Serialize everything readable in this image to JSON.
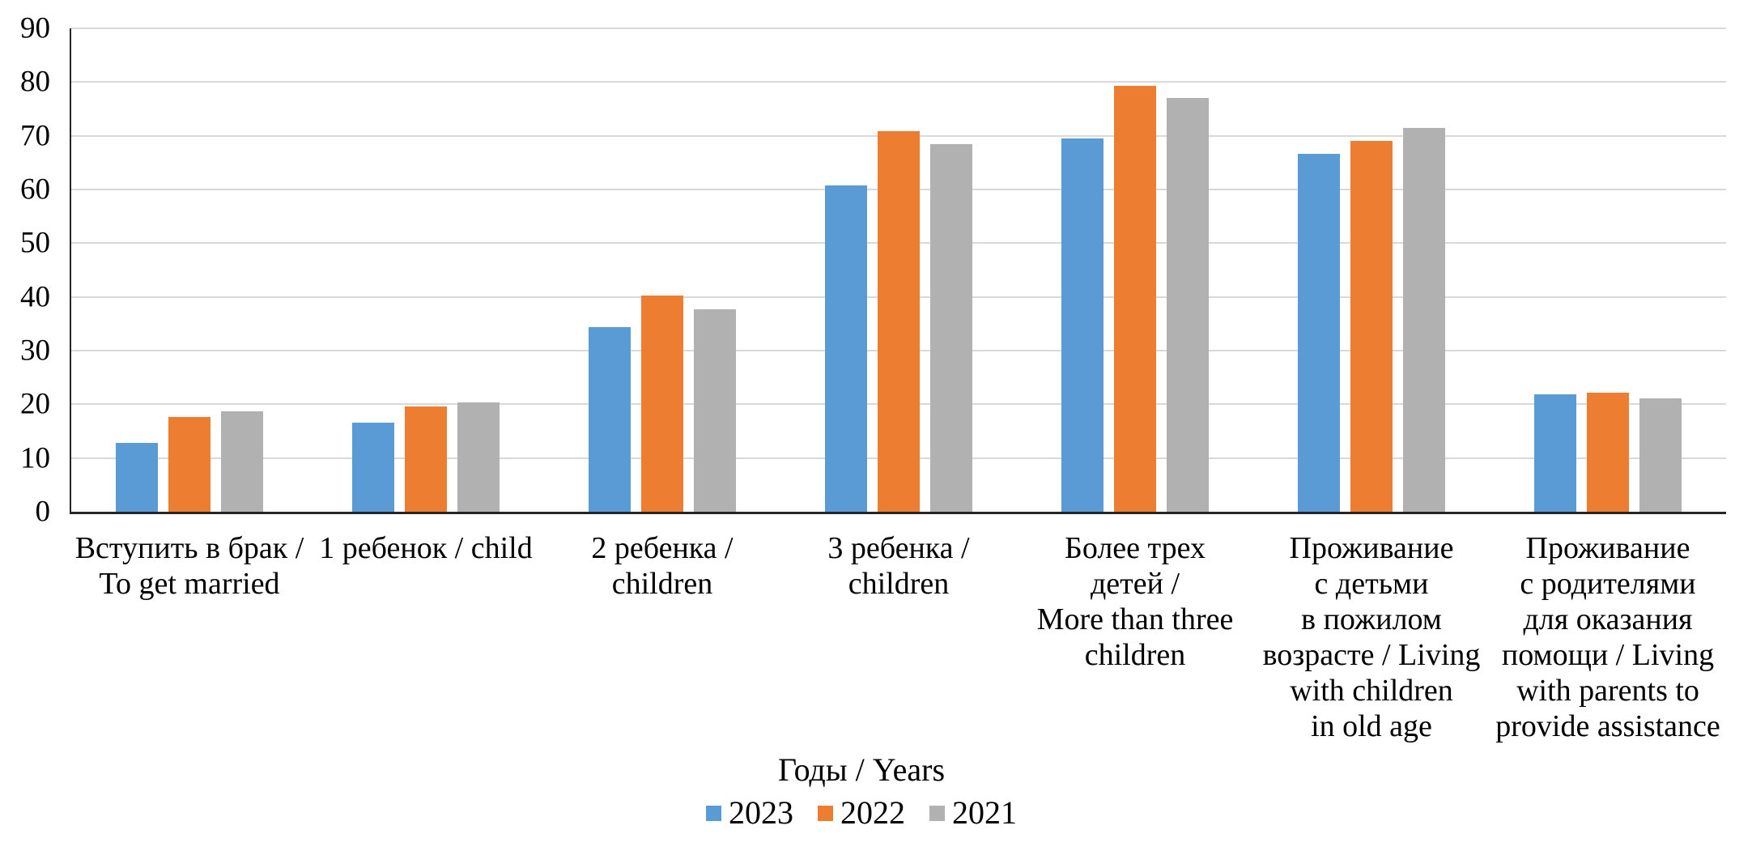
{
  "chart_data": {
    "type": "bar",
    "title": "",
    "xlabel": "",
    "ylabel": "",
    "ylim": [
      0,
      90
    ],
    "ytick_step": 10,
    "yticks": [
      0,
      10,
      20,
      30,
      40,
      50,
      60,
      70,
      80,
      90
    ],
    "grid": true,
    "categories": [
      "Вступить в брак /\nTo get married",
      "1 ребенок / child",
      "2 ребенка /\nchildren",
      "3 ребенка /\nchildren",
      "Более трех\nдетей /\nMore than three\nchildren",
      "Проживание\nс детьми\nв пожилом\nвозрасте / Living\nwith children\nin old age",
      "Проживание\nс родителями\nдля оказания\nпомощи / Living\nwith parents to\nprovide assistance"
    ],
    "series": [
      {
        "name": "2023",
        "color": "#5B9BD5",
        "values": [
          12.8,
          16.6,
          34.4,
          60.8,
          69.5,
          66.7,
          21.8
        ]
      },
      {
        "name": "2022",
        "color": "#ED7D31",
        "values": [
          17.7,
          19.6,
          40.3,
          70.9,
          79.3,
          69.1,
          22.2
        ]
      },
      {
        "name": "2021",
        "color": "#B1B1B1",
        "values": [
          18.7,
          20.4,
          37.7,
          68.4,
          77.0,
          71.4,
          21.1
        ]
      }
    ],
    "legend": {
      "title": "Годы / Years",
      "position": "bottom",
      "entries": [
        "2023",
        "2022",
        "2021"
      ]
    }
  },
  "style": {
    "background": "#FFFFFF",
    "gridline_color": "#D9D9D9",
    "axis_color": "#262626",
    "text_color": "#000000"
  }
}
